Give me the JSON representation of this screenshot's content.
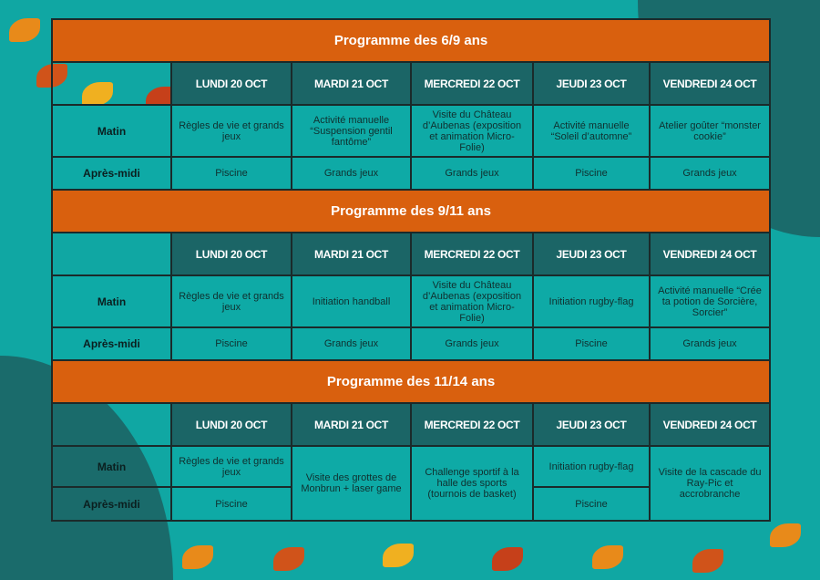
{
  "colors": {
    "background": "#10a7a3",
    "header": "#d9600e",
    "day_header": "#1b6566",
    "cell": "#0eaaa6"
  },
  "days": [
    "LUNDI 20 OCT",
    "MARDI 21 OCT",
    "MERCREDI 22 OCT",
    "JEUDI 23 OCT",
    "VENDREDI 24 OCT"
  ],
  "row_labels": {
    "morning": "Matin",
    "afternoon": "Après-midi"
  },
  "programs": [
    {
      "title": "Programme des 6/9 ans",
      "morning": [
        "Règles de vie et grands jeux",
        "Activité manuelle “Suspension gentil fantôme”",
        "Visite du Château d’Aubenas (exposition et animation Micro-Folie)",
        "Activité manuelle “Soleil d’automne”",
        "Atelier goûter “monster cookie”"
      ],
      "afternoon": [
        "Piscine",
        "Grands jeux",
        "Grands jeux",
        "Piscine",
        "Grands jeux"
      ]
    },
    {
      "title": "Programme des 9/11 ans",
      "morning": [
        "Règles de vie et grands jeux",
        "Initiation handball",
        "Visite du Château d’Aubenas (exposition et animation Micro-Folie)",
        "Initiation rugby-flag",
        "Activité manuelle “Crée ta potion de Sorcière, Sorcier”"
      ],
      "afternoon": [
        "Piscine",
        "Grands jeux",
        "Grands jeux",
        "Piscine",
        "Grands jeux"
      ]
    },
    {
      "title": "Programme des 11/14 ans",
      "morning": [
        "Règles de vie et grands jeux",
        "Visite des grottes de Monbrun + laser game",
        "Challenge sportif à la halle des sports (tournois de basket)",
        "Initiation rugby-flag",
        "Visite de la cascade du Ray-Pic et accrobranche"
      ],
      "afternoon": [
        "Piscine",
        "Piscine"
      ]
    }
  ]
}
